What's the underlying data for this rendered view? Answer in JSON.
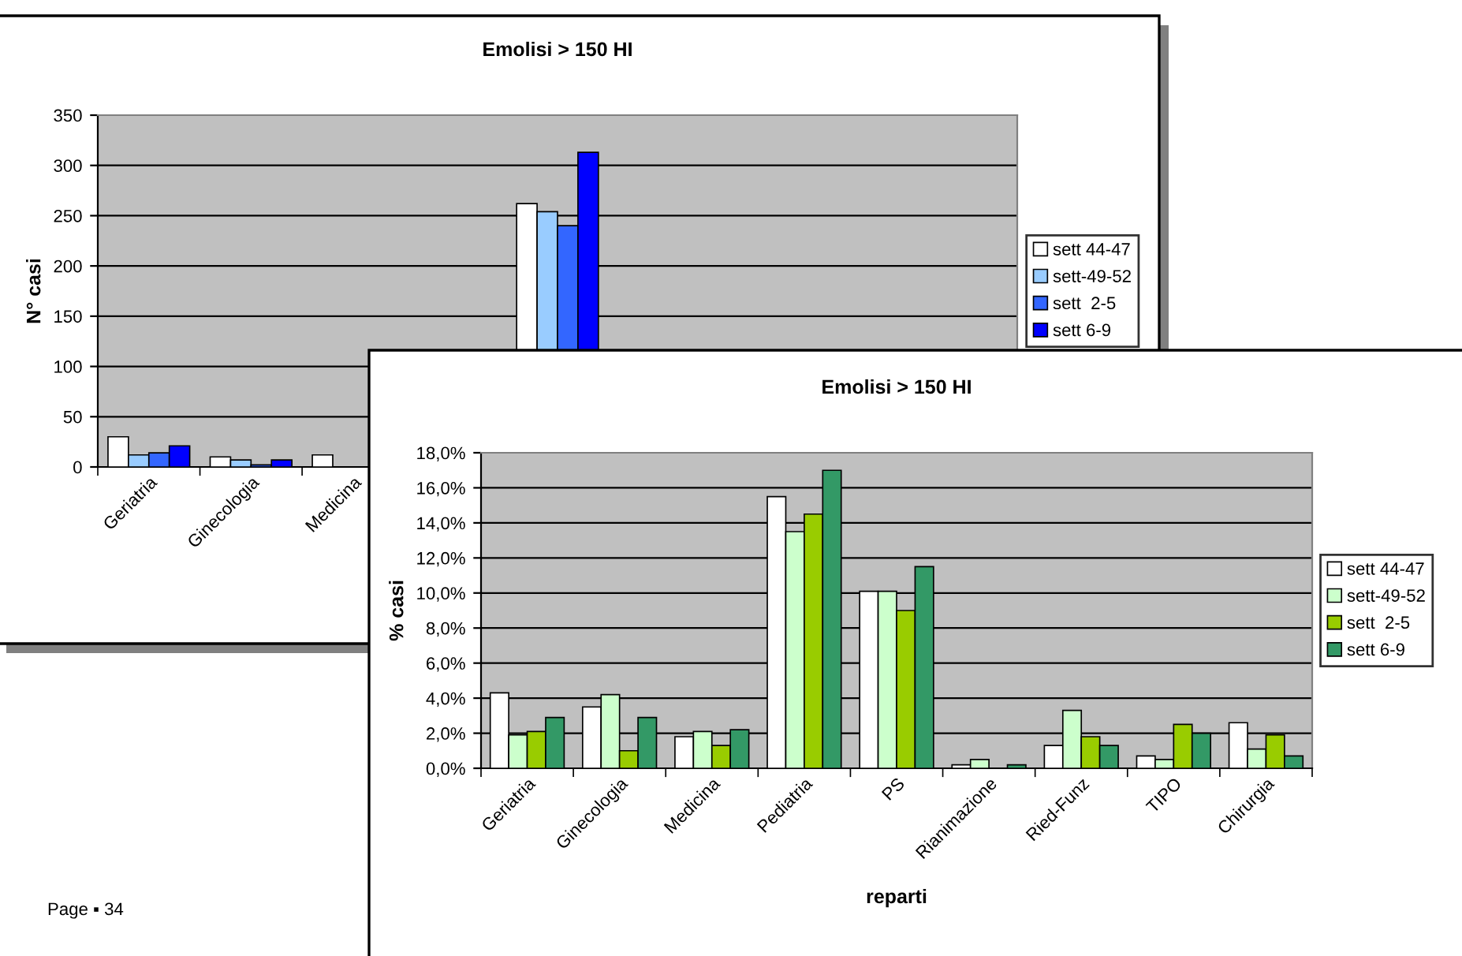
{
  "chart_data": [
    {
      "type": "bar",
      "title": "Emolisi > 150 HI",
      "ylabel": "N° casi",
      "categories": [
        "Geriatria",
        "Ginecologia",
        "Medicina",
        null,
        null,
        null,
        null,
        null,
        null
      ],
      "series": [
        {
          "name": "sett 44-47",
          "color": "#ffffff",
          "values": [
            30,
            10,
            12,
            null,
            262,
            null,
            null,
            null,
            null
          ]
        },
        {
          "name": "sett-49-52",
          "color": "#99ccff",
          "values": [
            12,
            7,
            null,
            null,
            254,
            null,
            null,
            null,
            null
          ]
        },
        {
          "name": "sett  2-5",
          "color": "#3366ff",
          "values": [
            14,
            2,
            null,
            null,
            240,
            null,
            null,
            null,
            null
          ]
        },
        {
          "name": "sett 6-9",
          "color": "#0000ff",
          "values": [
            21,
            7,
            null,
            null,
            313,
            null,
            null,
            null,
            null
          ]
        }
      ],
      "ylim": [
        0,
        350
      ],
      "yticks": [
        0,
        50,
        100,
        150,
        200,
        250,
        300,
        350
      ],
      "grid": "y",
      "legend": "right",
      "annotations": [
        "Page ▪ 34"
      ]
    },
    {
      "type": "bar",
      "title": "Emolisi > 150 HI",
      "ylabel": "% casi",
      "xlabel": "reparti",
      "categories": [
        "Geriatria",
        "Ginecologia",
        "Medicina",
        "Pediatria",
        "PS",
        "Rianimazione",
        "Ried-Funz",
        "TIPO",
        "Chirurgia"
      ],
      "series": [
        {
          "name": "sett 44-47",
          "color": "#ffffff",
          "values": [
            4.3,
            3.5,
            1.8,
            15.5,
            10.1,
            0.2,
            1.3,
            0.7,
            2.6
          ]
        },
        {
          "name": "sett-49-52",
          "color": "#ccffcc",
          "values": [
            1.9,
            4.2,
            2.1,
            13.5,
            10.1,
            0.5,
            3.3,
            0.5,
            1.1
          ]
        },
        {
          "name": "sett  2-5",
          "color": "#99cc00",
          "values": [
            2.1,
            1.0,
            1.3,
            14.5,
            9.0,
            null,
            1.8,
            2.5,
            1.9
          ]
        },
        {
          "name": "sett 6-9",
          "color": "#339966",
          "values": [
            2.9,
            2.9,
            2.2,
            17.0,
            11.5,
            0.2,
            1.3,
            2.0,
            0.7
          ]
        }
      ],
      "ylim": [
        0,
        18
      ],
      "yticks": [
        {
          "value": 0,
          "label": "0,0%"
        },
        {
          "value": 2,
          "label": "2,0%"
        },
        {
          "value": 4,
          "label": "4,0%"
        },
        {
          "value": 6,
          "label": "6,0%"
        },
        {
          "value": 8,
          "label": "8,0%"
        },
        {
          "value": 10,
          "label": "10,0%"
        },
        {
          "value": 12,
          "label": "12,0%"
        },
        {
          "value": 14,
          "label": "14,0%"
        },
        {
          "value": 16,
          "label": "16,0%"
        },
        {
          "value": 18,
          "label": "18,0%"
        }
      ],
      "grid": "y",
      "legend": "right"
    }
  ]
}
